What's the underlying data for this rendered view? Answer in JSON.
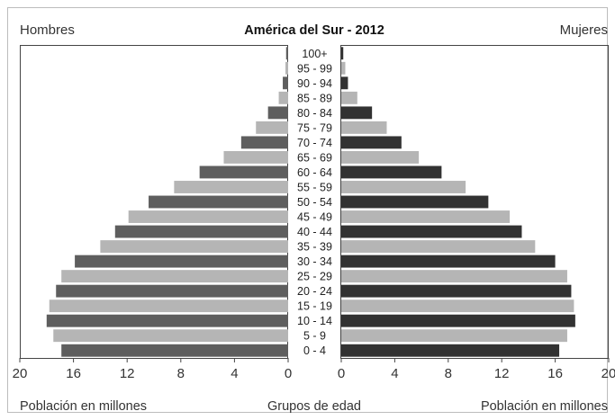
{
  "chart_data": {
    "type": "bar",
    "title": "América del Sur - 2012",
    "left_header": "Hombres",
    "right_header": "Mujeres",
    "xlabel_left": "Población en millones",
    "xlabel_center": "Grupos de edad",
    "xlabel_right": "Población en millones",
    "xlim": [
      0,
      20
    ],
    "x_ticks": [
      0,
      4,
      8,
      12,
      16,
      20
    ],
    "age_groups": [
      "0 - 4",
      "5 - 9",
      "10 - 14",
      "15 - 19",
      "20 - 24",
      "25 - 29",
      "30 - 34",
      "35 - 39",
      "40 - 44",
      "45 - 49",
      "50 - 54",
      "55 - 59",
      "60 - 64",
      "65 - 69",
      "70 - 74",
      "75 - 79",
      "80 - 84",
      "85 - 89",
      "90 - 94",
      "95 - 99",
      "100+"
    ],
    "series": [
      {
        "name": "Hombres",
        "values": [
          16.9,
          17.5,
          18.0,
          17.8,
          17.3,
          16.9,
          15.9,
          14.0,
          12.9,
          11.9,
          10.4,
          8.5,
          6.6,
          4.8,
          3.5,
          2.4,
          1.5,
          0.7,
          0.4,
          0.2,
          0.15
        ]
      },
      {
        "name": "Mujeres",
        "values": [
          16.3,
          16.9,
          17.5,
          17.4,
          17.2,
          16.9,
          16.0,
          14.5,
          13.5,
          12.6,
          11.0,
          9.3,
          7.5,
          5.8,
          4.5,
          3.4,
          2.3,
          1.2,
          0.5,
          0.3,
          0.15
        ]
      }
    ],
    "colors": {
      "male_dark": "#5e5e5e",
      "male_light": "#b5b5b5",
      "female_dark": "#323232",
      "female_light": "#b5b5b5"
    },
    "grid": false
  }
}
